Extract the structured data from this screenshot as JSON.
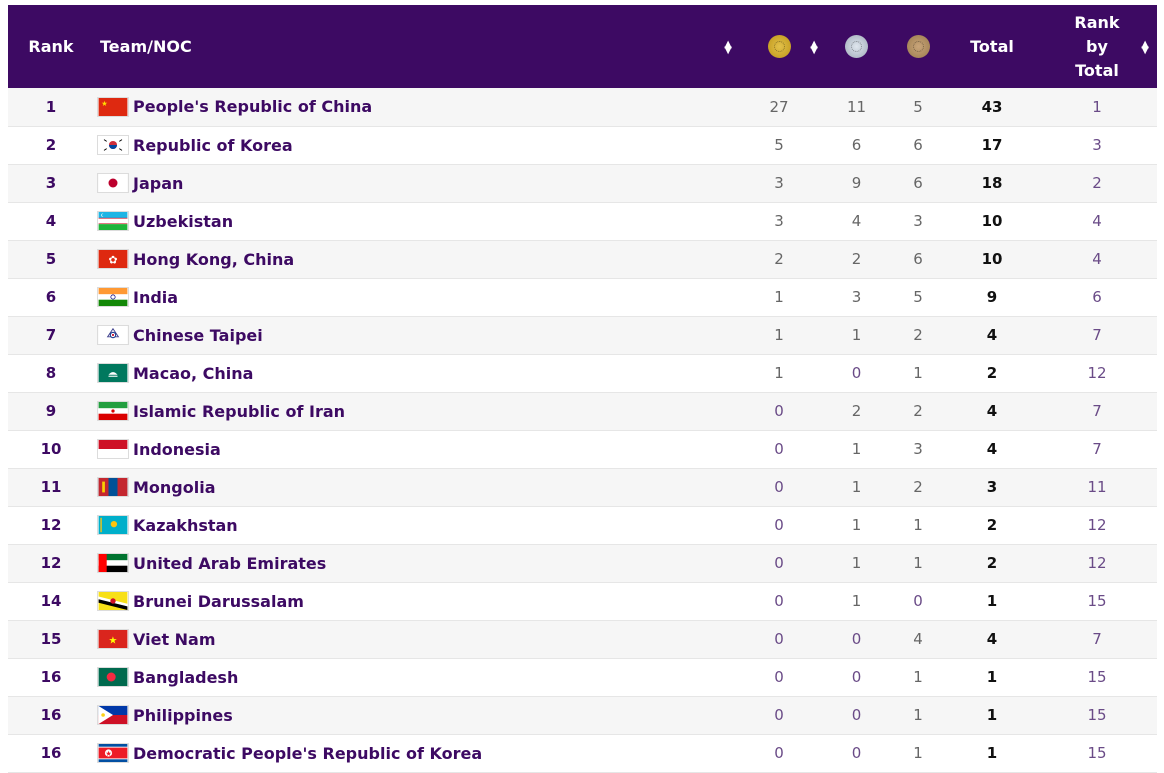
{
  "header": {
    "rank": "Rank",
    "team": "Team/NOC",
    "total": "Total",
    "rank_by_total_1": "Rank",
    "rank_by_total_2": "by",
    "rank_by_total_3": "Total",
    "gold_icon": "gold-medal-icon",
    "silver_icon": "silver-medal-icon",
    "bronze_icon": "bronze-medal-icon",
    "sort_icon": "sort-arrows-icon"
  },
  "colors": {
    "header_bg": "#3d0a63",
    "accent": "#3d0a63",
    "gold": "#c9a227",
    "silver": "#a9b4c2",
    "bronze": "#a8875a"
  },
  "rows": [
    {
      "rank": "1",
      "team": "People's Republic of China",
      "gold": "27",
      "silver": "11",
      "bronze": "5",
      "total": "43",
      "rank_by_total": "1"
    },
    {
      "rank": "2",
      "team": "Republic of Korea",
      "gold": "5",
      "silver": "6",
      "bronze": "6",
      "total": "17",
      "rank_by_total": "3"
    },
    {
      "rank": "3",
      "team": "Japan",
      "gold": "3",
      "silver": "9",
      "bronze": "6",
      "total": "18",
      "rank_by_total": "2"
    },
    {
      "rank": "4",
      "team": "Uzbekistan",
      "gold": "3",
      "silver": "4",
      "bronze": "3",
      "total": "10",
      "rank_by_total": "4"
    },
    {
      "rank": "5",
      "team": "Hong Kong, China",
      "gold": "2",
      "silver": "2",
      "bronze": "6",
      "total": "10",
      "rank_by_total": "4"
    },
    {
      "rank": "6",
      "team": "India",
      "gold": "1",
      "silver": "3",
      "bronze": "5",
      "total": "9",
      "rank_by_total": "6"
    },
    {
      "rank": "7",
      "team": "Chinese Taipei",
      "gold": "1",
      "silver": "1",
      "bronze": "2",
      "total": "4",
      "rank_by_total": "7"
    },
    {
      "rank": "8",
      "team": "Macao, China",
      "gold": "1",
      "silver": "0",
      "bronze": "1",
      "total": "2",
      "rank_by_total": "12"
    },
    {
      "rank": "9",
      "team": "Islamic Republic of Iran",
      "gold": "0",
      "silver": "2",
      "bronze": "2",
      "total": "4",
      "rank_by_total": "7"
    },
    {
      "rank": "10",
      "team": "Indonesia",
      "gold": "0",
      "silver": "1",
      "bronze": "3",
      "total": "4",
      "rank_by_total": "7"
    },
    {
      "rank": "11",
      "team": "Mongolia",
      "gold": "0",
      "silver": "1",
      "bronze": "2",
      "total": "3",
      "rank_by_total": "11"
    },
    {
      "rank": "12",
      "team": "Kazakhstan",
      "gold": "0",
      "silver": "1",
      "bronze": "1",
      "total": "2",
      "rank_by_total": "12"
    },
    {
      "rank": "12",
      "team": "United Arab Emirates",
      "gold": "0",
      "silver": "1",
      "bronze": "1",
      "total": "2",
      "rank_by_total": "12"
    },
    {
      "rank": "14",
      "team": "Brunei Darussalam",
      "gold": "0",
      "silver": "1",
      "bronze": "0",
      "total": "1",
      "rank_by_total": "15"
    },
    {
      "rank": "15",
      "team": "Viet Nam",
      "gold": "0",
      "silver": "0",
      "bronze": "4",
      "total": "4",
      "rank_by_total": "7"
    },
    {
      "rank": "16",
      "team": "Bangladesh",
      "gold": "0",
      "silver": "0",
      "bronze": "1",
      "total": "1",
      "rank_by_total": "15"
    },
    {
      "rank": "16",
      "team": "Philippines",
      "gold": "0",
      "silver": "0",
      "bronze": "1",
      "total": "1",
      "rank_by_total": "15"
    },
    {
      "rank": "16",
      "team": "Democratic People's Republic of Korea",
      "gold": "0",
      "silver": "0",
      "bronze": "1",
      "total": "1",
      "rank_by_total": "15"
    }
  ],
  "flags": [
    "china-flag-icon",
    "korea-flag-icon",
    "japan-flag-icon",
    "uzbekistan-flag-icon",
    "hong-kong-flag-icon",
    "india-flag-icon",
    "chinese-taipei-flag-icon",
    "macao-flag-icon",
    "iran-flag-icon",
    "indonesia-flag-icon",
    "mongolia-flag-icon",
    "kazakhstan-flag-icon",
    "uae-flag-icon",
    "brunei-flag-icon",
    "vietnam-flag-icon",
    "bangladesh-flag-icon",
    "philippines-flag-icon",
    "north-korea-flag-icon"
  ]
}
